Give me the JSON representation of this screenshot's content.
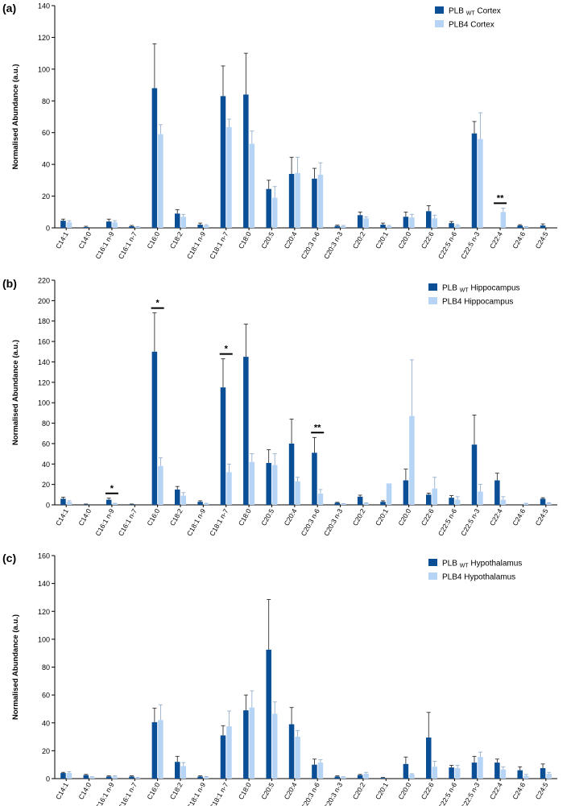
{
  "figure": {
    "series_colors": {
      "wt": "#0a4f95",
      "plb4": "#b6d4f5"
    }
  },
  "chart_data": [
    {
      "type": "bar",
      "panel_label": "(a)",
      "title": "",
      "xlabel": "",
      "ylabel": "Normalised Abundance (a.u.)",
      "ylim": [
        0,
        140
      ],
      "yticks": [
        0,
        20,
        40,
        60,
        80,
        100,
        120,
        140
      ],
      "legend": {
        "position": "top-right",
        "wt_prefix": "PLB",
        "wt_sub": "WT",
        "wt_suffix": "Cortex",
        "plb4": "PLB4 Cortex"
      },
      "categories": [
        "C14:1",
        "C14:0",
        "C16:1 n-9",
        "C16:1 n-7",
        "C16:0",
        "C18:2",
        "C18:1 n-9",
        "C18:1 n-7",
        "C18:0",
        "C20:5",
        "C20:4",
        "C20:3 n-6",
        "C20:3 n-3",
        "C20:2",
        "C20:1",
        "C20:0",
        "C22:6",
        "C22:5 n-6",
        "C22:5 n-3",
        "C22:4",
        "C24:6",
        "C24:5"
      ],
      "series": [
        {
          "name": "PLB WT Cortex",
          "values": [
            4.5,
            0.5,
            4,
            1,
            88,
            9,
            2,
            83,
            84,
            24.5,
            34,
            31,
            1.2,
            8,
            2,
            7,
            10.5,
            3,
            59.5,
            0,
            1.5,
            1.5
          ],
          "errors": [
            1,
            0.5,
            1.5,
            0.5,
            28,
            2.5,
            1,
            19,
            26,
            5.5,
            10.5,
            6.5,
            0.5,
            2,
            1,
            3,
            3.5,
            1,
            7.5,
            0,
            0.5,
            1
          ]
        },
        {
          "name": "PLB4 Cortex",
          "values": [
            3.5,
            0,
            3.5,
            0.5,
            59,
            7,
            1.5,
            63.5,
            53,
            19,
            34.5,
            33.5,
            1,
            6,
            1,
            6.5,
            6,
            1.5,
            56,
            10,
            0.5,
            0
          ],
          "errors": [
            1,
            0,
            1,
            0.3,
            6,
            1.5,
            0.5,
            5,
            8,
            7,
            10,
            7.5,
            0.5,
            1,
            0.5,
            2,
            2,
            0.5,
            16.5,
            2.5,
            0.3,
            0
          ]
        }
      ],
      "significance": [
        {
          "category": "C22:4",
          "label": "**"
        }
      ]
    },
    {
      "type": "bar",
      "panel_label": "(b)",
      "title": "",
      "xlabel": "",
      "ylabel": "Normalised Abundance (a.u.)",
      "ylim": [
        0,
        220
      ],
      "yticks": [
        0,
        20,
        40,
        60,
        80,
        100,
        120,
        140,
        160,
        180,
        200,
        220
      ],
      "legend": {
        "position": "top-right",
        "wt_prefix": "PLB",
        "wt_sub": "WT",
        "wt_suffix": "Hippocampus",
        "plb4": "PLB4 Hippocampus"
      },
      "categories": [
        "C14:1",
        "C14:0",
        "C16:1 n-9",
        "C16:1 n-7",
        "C16:0",
        "C18:2",
        "C18:1 n-9",
        "C18:1 n-7",
        "C18:0",
        "C20:5",
        "C20:4",
        "C20:3 n-6",
        "C20:3 n-3",
        "C20:2",
        "C20:1",
        "C20:0",
        "C22:6",
        "C22:5 n-6",
        "C22:5 n-3",
        "C22:4",
        "C24:6",
        "C24:5"
      ],
      "series": [
        {
          "name": "PLB WT Hippocampus",
          "values": [
            6,
            0.5,
            5,
            0.5,
            150,
            15,
            3,
            115,
            145,
            41,
            60,
            51,
            2,
            8,
            3,
            24,
            10,
            7,
            59,
            24,
            0,
            6
          ],
          "errors": [
            1.5,
            0.3,
            1.5,
            0.3,
            38,
            3,
            1,
            28,
            32,
            13,
            24,
            15,
            0.5,
            1.5,
            1,
            11,
            1.5,
            2,
            29,
            7,
            0,
            1
          ]
        },
        {
          "name": "PLB4 Hippocampus",
          "values": [
            3,
            0,
            1,
            0,
            38,
            9,
            1,
            32,
            42,
            39,
            23,
            11,
            1,
            1.5,
            21,
            87,
            16,
            5,
            13,
            5,
            1,
            1.5
          ],
          "errors": [
            1,
            0,
            0.5,
            0,
            8,
            3,
            0.5,
            8,
            8,
            11,
            4,
            4,
            0.3,
            0.5,
            0,
            55,
            11,
            3,
            7,
            3,
            0.5,
            0.5
          ]
        }
      ],
      "significance": [
        {
          "category": "C16:1 n-9",
          "label": "*"
        },
        {
          "category": "C16:0",
          "label": "*"
        },
        {
          "category": "C18:1 n-7",
          "label": "*"
        },
        {
          "category": "C20:3 n-6",
          "label": "**"
        }
      ]
    },
    {
      "type": "bar",
      "panel_label": "(c)",
      "title": "",
      "xlabel": "",
      "ylabel": "Normalised Abundance (a.u.)",
      "ylim": [
        0,
        160
      ],
      "yticks": [
        0,
        20,
        40,
        60,
        80,
        100,
        120,
        140,
        160
      ],
      "legend": {
        "position": "top-right",
        "wt_prefix": "PLB",
        "wt_sub": "WT",
        "wt_suffix": "Hypothalamus",
        "plb4": "PLB4 Hypothalamus"
      },
      "categories": [
        "C14:1",
        "C14:0",
        "C16:1 n-9",
        "C16:1 n-7",
        "C16:0",
        "C18:2",
        "C18:1 n-9",
        "C18:1 n-7",
        "C18:0",
        "C20:5",
        "C20:4",
        "C20:3 n-6",
        "C20:3 n-3",
        "C20:2",
        "C20:1",
        "C20:0",
        "C22:6",
        "C22:5 n-6",
        "C22:5 n-3",
        "C22:4",
        "C24:6",
        "C24:5"
      ],
      "series": [
        {
          "name": "PLB WT Hypothalamus",
          "values": [
            4,
            2.5,
            1.5,
            1.5,
            40.5,
            12,
            1.5,
            31,
            49,
            92.5,
            39,
            10,
            1.5,
            2.5,
            0.5,
            10.5,
            29.5,
            8,
            11.5,
            11.5,
            6,
            7.5
          ],
          "errors": [
            0.5,
            0.5,
            0.5,
            0.5,
            10,
            4,
            0.5,
            7,
            11,
            36,
            12,
            4,
            0.5,
            0.5,
            0.3,
            5,
            18,
            1.5,
            4.5,
            2.5,
            2.5,
            3
          ]
        },
        {
          "name": "PLB4 Hypothalamus",
          "values": [
            4,
            1,
            1.5,
            0.5,
            42,
            9,
            1,
            37.5,
            51,
            46.5,
            30,
            11.5,
            1,
            3.5,
            0,
            3,
            8.5,
            7.5,
            15.5,
            6.5,
            2,
            3.5
          ],
          "errors": [
            1,
            0.3,
            0.5,
            0.3,
            11,
            2.5,
            0.5,
            11,
            12,
            8.5,
            4.5,
            2,
            0.3,
            1,
            0,
            0.5,
            4,
            2,
            3.5,
            2,
            1,
            1
          ]
        }
      ],
      "significance": []
    }
  ]
}
